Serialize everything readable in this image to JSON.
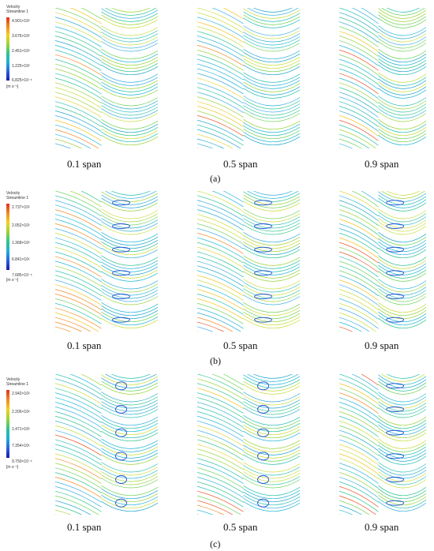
{
  "rows": [
    {
      "legend": {
        "title1": "Velocity",
        "title2": "Streamline 1",
        "ticks": [
          "4.901×10²",
          "3.676×10²",
          "2.451×10²",
          "1.225×10²",
          "6.825×10⁻⁶"
        ],
        "unit": "[m s⁻¹]"
      },
      "spans": [
        "0.1 span",
        "0.5 span",
        "0.9 span"
      ],
      "label": "(a)"
    },
    {
      "legend": {
        "title1": "Velocity",
        "title2": "Streamline 1",
        "ticks": [
          "2.737×10²",
          "2.052×10²",
          "1.368×10²",
          "6.841×10¹",
          "7.685×10⁻⁶"
        ],
        "unit": "[m s⁻¹]"
      },
      "spans": [
        "0.1 span",
        "0.5 span",
        "0.9 span"
      ],
      "label": "(b)"
    },
    {
      "legend": {
        "title1": "Velocity",
        "title2": "Streamline 1",
        "ticks": [
          "2.942×10²",
          "2.206×10²",
          "1.471×10²",
          "7.354×10¹",
          "9.750×10⁻⁶"
        ],
        "unit": "[m s⁻¹]"
      },
      "spans": [
        "0.1 span",
        "0.5 span",
        "0.9 span"
      ],
      "label": "(c)"
    }
  ]
}
